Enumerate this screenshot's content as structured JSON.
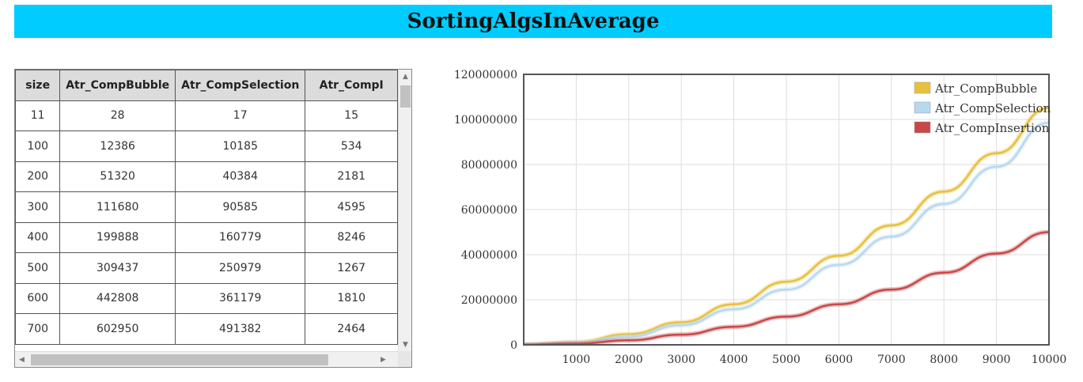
{
  "title": "SortingAlgsInAverage",
  "table": {
    "headers": [
      "size",
      "Atr_CompBubble",
      "Atr_CompSelection",
      "Atr_CompI"
    ],
    "rows": [
      [
        "11",
        "28",
        "17",
        "15"
      ],
      [
        "100",
        "12386",
        "10185",
        "534"
      ],
      [
        "200",
        "51320",
        "40384",
        "2181"
      ],
      [
        "300",
        "111680",
        "90585",
        "4595"
      ],
      [
        "400",
        "199888",
        "160779",
        "8246"
      ],
      [
        "500",
        "309437",
        "250979",
        "1267"
      ],
      [
        "600",
        "442808",
        "361179",
        "1810"
      ],
      [
        "700",
        "602950",
        "491382",
        "2464"
      ]
    ]
  },
  "icons": {
    "scroll_up": "triangle-up-icon",
    "scroll_down": "triangle-down-icon",
    "scroll_left": "triangle-left-icon",
    "scroll_right": "triangle-right-icon"
  },
  "chart_data": {
    "type": "line",
    "title": "",
    "xlabel": "",
    "ylabel": "",
    "xlim": [
      0,
      10000
    ],
    "ylim": [
      0,
      120000000
    ],
    "x_ticks": [
      1000,
      2000,
      3000,
      4000,
      5000,
      6000,
      7000,
      8000,
      9000,
      10000
    ],
    "y_ticks": [
      0,
      20000000,
      40000000,
      60000000,
      80000000,
      100000000,
      120000000
    ],
    "grid": true,
    "legend_position": "top-right",
    "x": [
      0,
      1000,
      2000,
      3000,
      4000,
      5000,
      6000,
      7000,
      8000,
      9000,
      10000
    ],
    "series": [
      {
        "name": "Atr_CompBubble",
        "color": "#e8c040",
        "values": [
          0,
          1200000,
          4700000,
          10000000,
          18000000,
          28000000,
          39500000,
          53000000,
          68000000,
          85000000,
          105000000
        ]
      },
      {
        "name": "Atr_CompSelection",
        "color": "#b8d8f0",
        "values": [
          0,
          1000000,
          3600000,
          8700000,
          15800000,
          24500000,
          35500000,
          48000000,
          62500000,
          79000000,
          98500000
        ]
      },
      {
        "name": "Atr_CompInsertion",
        "color": "#c84848",
        "values": [
          0,
          500000,
          2000000,
          4500000,
          8000000,
          12500000,
          18000000,
          24500000,
          32000000,
          40500000,
          50000000
        ]
      }
    ]
  }
}
